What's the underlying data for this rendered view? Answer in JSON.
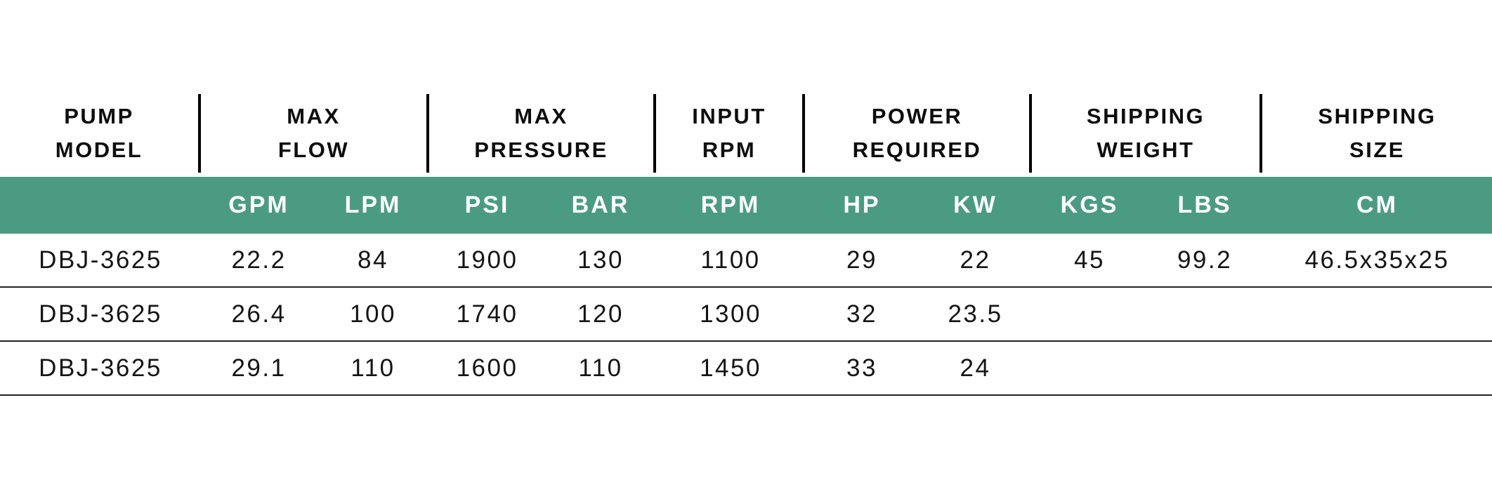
{
  "table": {
    "groups": [
      {
        "line1": "PUMP",
        "line2": "MODEL"
      },
      {
        "line1": "MAX",
        "line2": "FLOW"
      },
      {
        "line1": "MAX",
        "line2": "PRESSURE"
      },
      {
        "line1": "INPUT",
        "line2": "RPM"
      },
      {
        "line1": "POWER",
        "line2": "REQUIRED"
      },
      {
        "line1": "SHIPPING",
        "line2": "WEIGHT"
      },
      {
        "line1": "SHIPPING",
        "line2": "SIZE"
      }
    ],
    "units": [
      "",
      "GPM",
      "LPM",
      "PSI",
      "BAR",
      "RPM",
      "HP",
      "KW",
      "KGS",
      "LBS",
      "CM"
    ],
    "rows": [
      [
        "DBJ-3625",
        "22.2",
        "84",
        "1900",
        "130",
        "1100",
        "29",
        "22",
        "45",
        "99.2",
        "46.5x35x25"
      ],
      [
        "DBJ-3625",
        "26.4",
        "100",
        "1740",
        "120",
        "1300",
        "32",
        "23.5",
        "",
        "",
        ""
      ],
      [
        "DBJ-3625",
        "29.1",
        "110",
        "1600",
        "110",
        "1450",
        "33",
        "24",
        "",
        "",
        ""
      ]
    ]
  },
  "colors": {
    "units_band_green": "#4b9b82",
    "units_text": "#ffffff",
    "divider_black": "#000000",
    "row_border": "#222222",
    "text": "#141414"
  }
}
